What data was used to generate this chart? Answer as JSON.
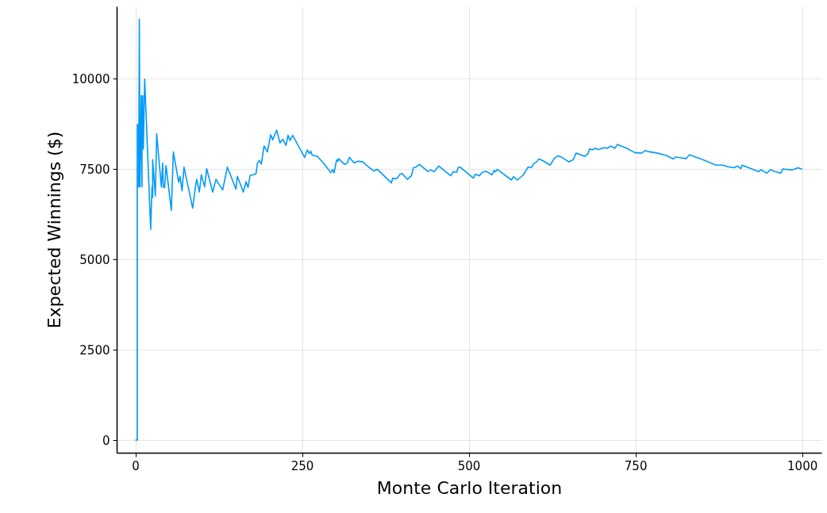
{
  "chart_data": {
    "type": "line",
    "xlabel": "Monte Carlo Iteration",
    "ylabel": "Expected Winnings ($)",
    "xlim": [
      -28,
      1029
    ],
    "ylim": [
      -350,
      12000
    ],
    "xticks": [
      0,
      250,
      500,
      750,
      1000
    ],
    "yticks": [
      0,
      2500,
      5000,
      7500,
      10000
    ],
    "grid": true,
    "line_style": "solid",
    "marker": "none",
    "series": [
      {
        "color": "#009af9",
        "x": [
          0,
          3,
          3,
          5,
          5,
          6,
          7,
          9,
          10,
          10,
          11,
          12,
          14,
          23,
          25,
          26,
          26,
          30,
          32,
          39,
          41,
          42,
          44,
          46,
          54,
          57,
          65,
          67,
          70,
          73,
          86,
          90,
          92,
          96,
          99,
          104,
          107,
          116,
          121,
          125,
          131,
          138,
          151,
          153,
          162,
          166,
          169,
          172,
          181,
          183,
          186,
          189,
          193,
          198,
          203,
          206,
          212,
          217,
          221,
          226,
          229,
          232,
          236,
          254,
          258,
          261,
          263,
          265,
          273,
          284,
          293,
          296,
          298,
          302,
          304,
          305,
          314,
          318,
          321,
          328,
          334,
          341,
          351,
          358,
          363,
          384,
          386,
          390,
          393,
          397,
          400,
          408,
          414,
          417,
          421,
          426,
          439,
          443,
          448,
          455,
          473,
          477,
          482,
          484,
          487,
          507,
          510,
          516,
          520,
          523,
          527,
          535,
          538,
          540,
          543,
          564,
          567,
          573,
          582,
          589,
          594,
          597,
          602,
          605,
          611,
          622,
          625,
          628,
          634,
          639,
          650,
          657,
          661,
          668,
          674,
          679,
          681,
          685,
          690,
          694,
          703,
          708,
          713,
          719,
          723,
          737,
          749,
          759,
          765,
          769,
          783,
          796,
          807,
          810,
          820,
          826,
          831,
          847,
          871,
          881,
          888,
          898,
          903,
          908,
          910,
          935,
          938,
          947,
          952,
          960,
          968,
          971,
          976,
          983,
          988,
          994,
          1000
        ],
        "values": [
          0,
          0,
          8726,
          8726,
          7006,
          11645,
          7006,
          9523,
          7006,
          9523,
          9523,
          8054,
          9984,
          5831,
          7006,
          6712,
          7761,
          6754,
          8474,
          7006,
          7660,
          6989,
          6989,
          7593,
          6360,
          7971,
          7132,
          7300,
          6897,
          7551,
          6418,
          6989,
          7215,
          6863,
          7341,
          7006,
          7509,
          6863,
          7215,
          7090,
          6922,
          7551,
          6947,
          7300,
          6863,
          7148,
          6989,
          7316,
          7366,
          7652,
          7736,
          7635,
          8138,
          7971,
          8449,
          8306,
          8575,
          8222,
          8323,
          8155,
          8432,
          8290,
          8432,
          7820,
          8029,
          7929,
          7996,
          7887,
          7849,
          7625,
          7402,
          7482,
          7393,
          7760,
          7715,
          7786,
          7625,
          7670,
          7822,
          7670,
          7715,
          7697,
          7536,
          7446,
          7491,
          7115,
          7249,
          7222,
          7249,
          7357,
          7375,
          7214,
          7312,
          7536,
          7554,
          7625,
          7428,
          7473,
          7428,
          7581,
          7312,
          7428,
          7410,
          7536,
          7554,
          7249,
          7357,
          7312,
          7402,
          7428,
          7428,
          7339,
          7464,
          7419,
          7491,
          7196,
          7285,
          7196,
          7339,
          7554,
          7536,
          7643,
          7697,
          7777,
          7733,
          7607,
          7688,
          7786,
          7867,
          7831,
          7697,
          7760,
          7939,
          7894,
          7849,
          7921,
          8055,
          8028,
          8073,
          8037,
          8091,
          8073,
          8135,
          8073,
          8180,
          8073,
          7956,
          7939,
          8010,
          7983,
          7939,
          7876,
          7777,
          7831,
          7804,
          7786,
          7894,
          7786,
          7607,
          7607,
          7563,
          7536,
          7581,
          7509,
          7607,
          7428,
          7482,
          7384,
          7482,
          7428,
          7384,
          7500,
          7491,
          7473,
          7491,
          7536,
          7491
        ]
      }
    ]
  }
}
